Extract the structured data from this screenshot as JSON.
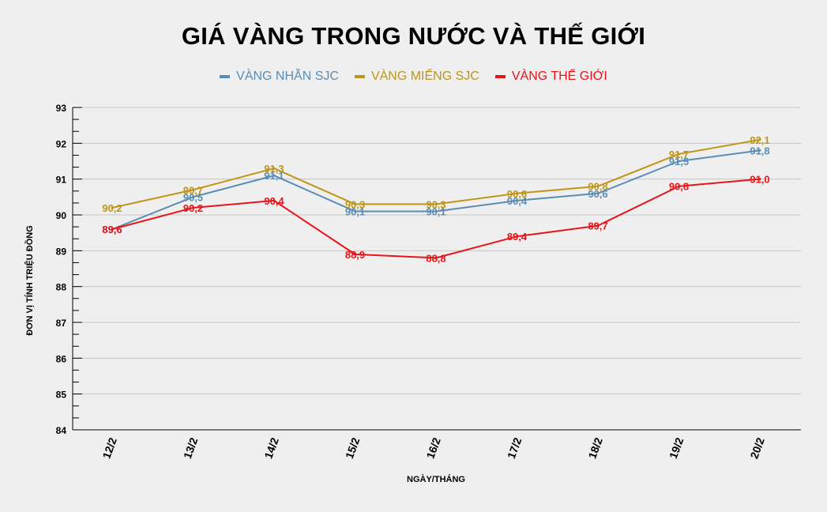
{
  "chart_data": {
    "type": "line",
    "title": "GIÁ VÀNG TRONG NƯỚC VÀ THẾ GIỚI",
    "xlabel": "NGÀY/THÁNG",
    "ylabel": "ĐƠN VỊ TÍNH TRIỆU ĐỒNG",
    "ylim": [
      84,
      93
    ],
    "yticks": [
      "84",
      "85",
      "86",
      "87",
      "88",
      "89",
      "90",
      "91",
      "92",
      "93"
    ],
    "grid": true,
    "legend_position": "top-center",
    "categories": [
      "12/2",
      "13/2",
      "14/2",
      "15/2",
      "16/2",
      "17/2",
      "18/2",
      "19/2",
      "20/2"
    ],
    "series": [
      {
        "name": "VÀNG NHẪN SJC",
        "color": "#5b8db4",
        "values": [
          89.6,
          90.5,
          91.1,
          90.1,
          90.1,
          90.4,
          90.6,
          91.5,
          91.8
        ],
        "labels": [
          "89,6",
          "90,5",
          "91,1",
          "90,1",
          "90,1",
          "90,4",
          "90,6",
          "91,5",
          "91,8"
        ]
      },
      {
        "name": "VÀNG MIẾNG SJC",
        "color": "#c09516",
        "values": [
          90.2,
          90.7,
          91.3,
          90.3,
          90.3,
          90.6,
          90.8,
          91.7,
          92.1
        ],
        "labels": [
          "90,2",
          "90,7",
          "91,3",
          "90,3",
          "90,3",
          "90,6",
          "90,8",
          "91,7",
          "92,1"
        ]
      },
      {
        "name": "VÀNG THẾ GIỚI",
        "color": "#e8141a",
        "values": [
          89.6,
          90.2,
          90.4,
          88.9,
          88.8,
          89.4,
          89.7,
          90.8,
          91.0
        ],
        "labels": [
          "89,6",
          "90,2",
          "90,4",
          "88,9",
          "88,8",
          "89,4",
          "89,7",
          "90,8",
          "91,0"
        ]
      }
    ]
  }
}
